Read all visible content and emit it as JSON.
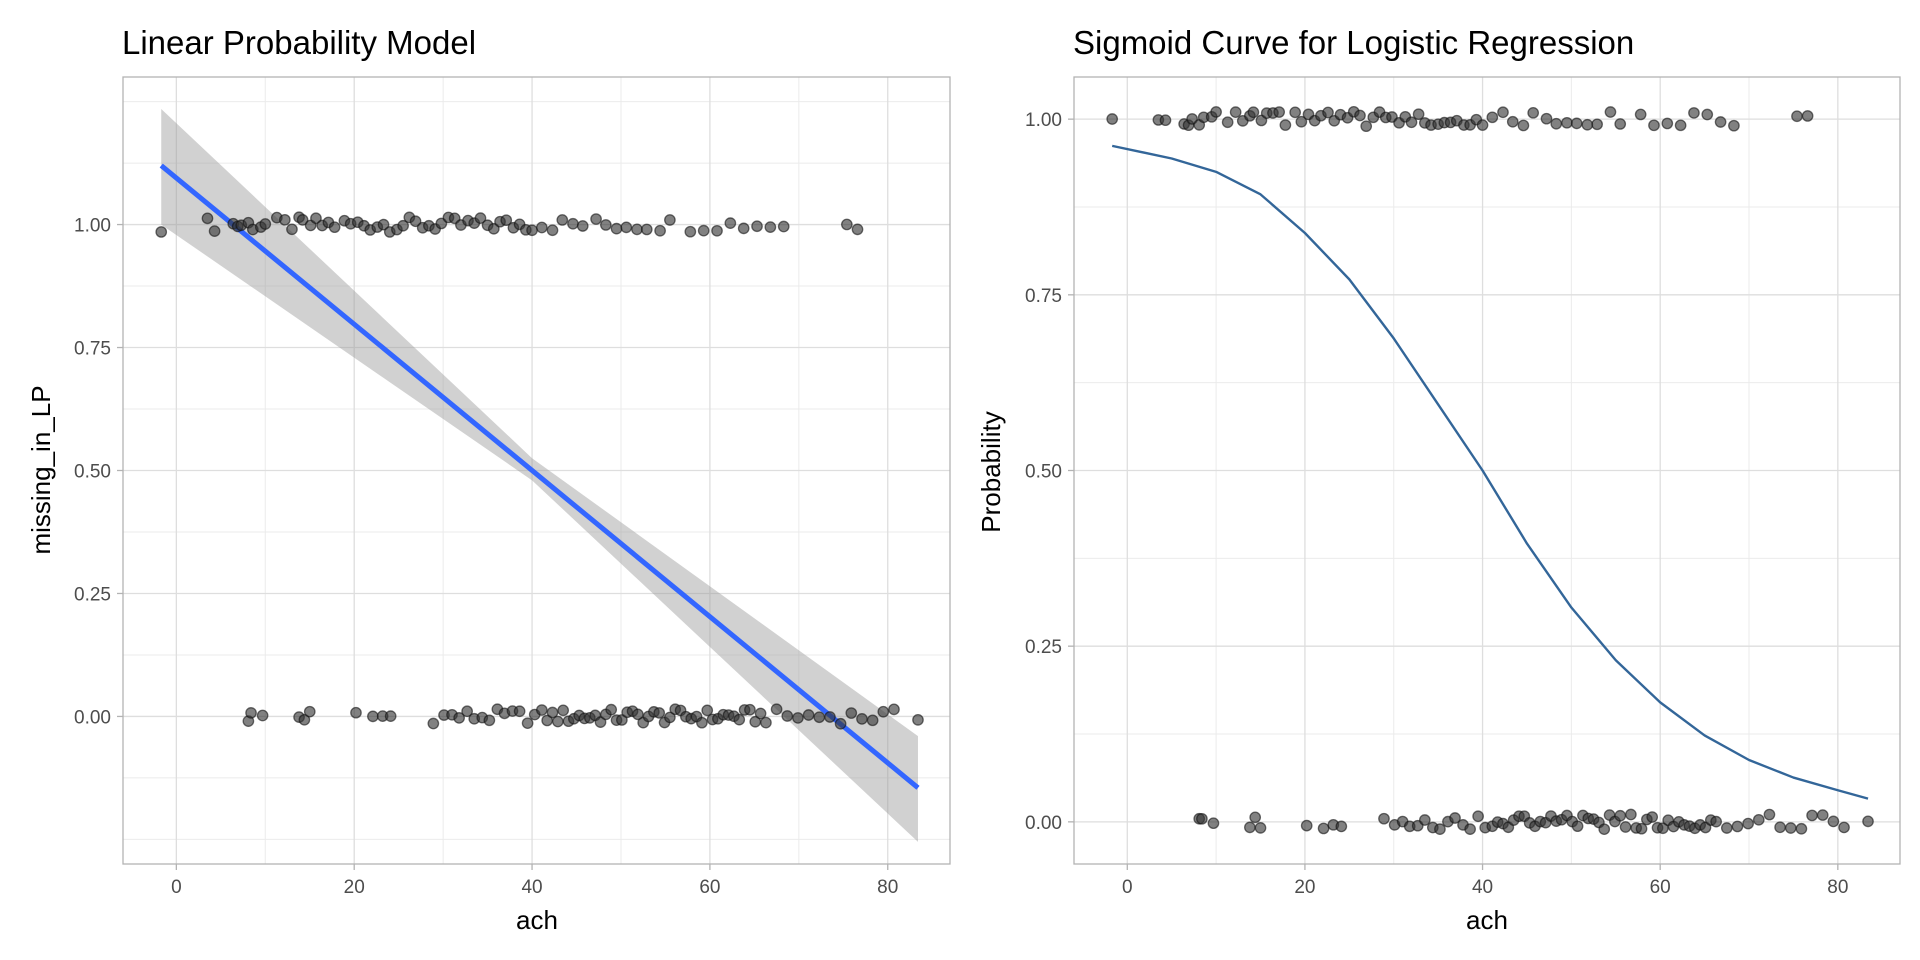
{
  "chart_data": [
    {
      "type": "scatter",
      "title": "Linear Probability Model",
      "xlabel": "ach",
      "ylabel": "missing_in_LP",
      "xlim": [
        -6,
        87
      ],
      "ylim": [
        -0.3,
        1.3
      ],
      "xticks": [
        0,
        20,
        40,
        60,
        80
      ],
      "xtick_labels": [
        "0",
        "20",
        "40",
        "60",
        "80"
      ],
      "yticks": [
        0,
        0.25,
        0.5,
        0.75,
        1
      ],
      "ytick_labels": [
        "0.00",
        "0.25",
        "0.50",
        "0.75",
        "1.00"
      ],
      "grid": true,
      "legend": "none",
      "series": [
        {
          "kind": "points",
          "color": "#333333",
          "y_level": 1,
          "x": [
            -1.7,
            3.5,
            4.3,
            6.4,
            6.9,
            7.3,
            8.1,
            8.6,
            9.5,
            10.0,
            11.3,
            12.2,
            13.0,
            13.8,
            14.2,
            15.1,
            15.7,
            16.4,
            17.1,
            17.8,
            18.9,
            19.6,
            20.4,
            21.1,
            21.8,
            22.6,
            23.3,
            24.0,
            24.8,
            25.5,
            26.2,
            26.9,
            27.7,
            28.4,
            29.1,
            29.8,
            30.6,
            31.3,
            32.0,
            32.8,
            33.5,
            34.2,
            35.0,
            35.7,
            36.4,
            37.1,
            37.9,
            38.6,
            39.3,
            40.0,
            41.1,
            42.3,
            43.4,
            44.6,
            45.7,
            47.2,
            48.3,
            49.5,
            50.6,
            51.8,
            52.9,
            54.4,
            55.5,
            57.8,
            59.3,
            60.8,
            62.3,
            63.8,
            65.3,
            66.8,
            68.3,
            75.4,
            76.6
          ]
        },
        {
          "kind": "points",
          "color": "#333333",
          "y_level": 0,
          "x": [
            8.1,
            8.4,
            9.7,
            13.8,
            14.4,
            15.0,
            20.2,
            22.1,
            23.2,
            24.1,
            28.9,
            30.1,
            31.0,
            31.8,
            32.7,
            33.5,
            34.4,
            35.2,
            36.1,
            36.9,
            37.8,
            38.6,
            39.5,
            40.3,
            41.1,
            41.7,
            42.3,
            42.9,
            43.5,
            44.1,
            44.7,
            45.3,
            45.9,
            46.5,
            47.1,
            47.7,
            48.3,
            48.9,
            49.5,
            50.1,
            50.7,
            51.3,
            51.9,
            52.5,
            53.1,
            53.7,
            54.3,
            54.9,
            55.5,
            56.1,
            56.7,
            57.3,
            57.9,
            58.5,
            59.1,
            59.7,
            60.3,
            60.9,
            61.5,
            62.1,
            62.7,
            63.3,
            63.9,
            64.5,
            65.1,
            65.7,
            66.3,
            67.5,
            68.7,
            69.9,
            71.1,
            72.3,
            73.5,
            74.7,
            75.9,
            77.1,
            78.3,
            79.5,
            80.7,
            83.4
          ]
        },
        {
          "kind": "fit-line",
          "color": "#3366FF",
          "x": [
            -1.7,
            83.4
          ],
          "y": [
            1.12,
            -0.145
          ]
        },
        {
          "kind": "ribbon",
          "color": "#999999",
          "x": [
            -1.7,
            40,
            83.4
          ],
          "y_low": [
            1.0,
            0.48,
            -0.255
          ],
          "y_high": [
            1.235,
            0.525,
            -0.04
          ]
        }
      ]
    },
    {
      "type": "scatter",
      "title": "Sigmoid Curve for Logistic Regression",
      "xlabel": "ach",
      "ylabel": "Probability",
      "xlim": [
        -6,
        87
      ],
      "ylim": [
        -0.06,
        1.06
      ],
      "xticks": [
        0,
        20,
        40,
        60,
        80
      ],
      "xtick_labels": [
        "0",
        "20",
        "40",
        "60",
        "80"
      ],
      "yticks": [
        0,
        0.25,
        0.5,
        0.75,
        1
      ],
      "ytick_labels": [
        "0.00",
        "0.25",
        "0.50",
        "0.75",
        "1.00"
      ],
      "grid": true,
      "legend": "none",
      "series": [
        {
          "kind": "points",
          "color": "#333333",
          "y_level": 1,
          "x": [
            -1.7,
            3.5,
            4.3,
            6.4,
            6.9,
            7.3,
            8.1,
            8.6,
            9.5,
            10.0,
            11.3,
            12.2,
            13.0,
            13.8,
            14.2,
            15.1,
            15.7,
            16.4,
            17.1,
            17.8,
            18.9,
            19.6,
            20.4,
            21.1,
            21.8,
            22.6,
            23.3,
            24.0,
            24.8,
            25.5,
            26.2,
            26.9,
            27.7,
            28.4,
            29.1,
            29.8,
            30.6,
            31.3,
            32.0,
            32.8,
            33.5,
            34.2,
            35.0,
            35.7,
            36.4,
            37.1,
            37.9,
            38.6,
            39.3,
            40.0,
            41.1,
            42.3,
            43.4,
            44.6,
            45.7,
            47.2,
            48.3,
            49.5,
            50.6,
            51.8,
            52.9,
            54.4,
            55.5,
            57.8,
            59.3,
            60.8,
            62.3,
            63.8,
            65.3,
            66.8,
            68.3,
            75.4,
            76.6
          ]
        },
        {
          "kind": "points",
          "color": "#333333",
          "y_level": 0,
          "x": [
            8.1,
            8.4,
            9.7,
            13.8,
            14.4,
            15.0,
            20.2,
            22.1,
            23.2,
            24.1,
            28.9,
            30.1,
            31.0,
            31.8,
            32.7,
            33.5,
            34.4,
            35.2,
            36.1,
            36.9,
            37.8,
            38.6,
            39.5,
            40.3,
            41.1,
            41.7,
            42.3,
            42.9,
            43.5,
            44.1,
            44.7,
            45.3,
            45.9,
            46.5,
            47.1,
            47.7,
            48.3,
            48.9,
            49.5,
            50.1,
            50.7,
            51.3,
            51.9,
            52.5,
            53.1,
            53.7,
            54.3,
            54.9,
            55.5,
            56.1,
            56.7,
            57.3,
            57.9,
            58.5,
            59.1,
            59.7,
            60.3,
            60.9,
            61.5,
            62.1,
            62.7,
            63.3,
            63.9,
            64.5,
            65.1,
            65.7,
            66.3,
            67.5,
            68.7,
            69.9,
            71.1,
            72.3,
            73.5,
            74.7,
            75.9,
            77.1,
            78.3,
            79.5,
            80.7,
            83.4
          ]
        },
        {
          "kind": "curve",
          "color": "#336699",
          "x": [
            -1.7,
            5,
            10,
            15,
            20,
            25,
            30,
            35,
            40,
            45,
            50,
            55,
            60,
            65,
            70,
            75,
            80,
            83.4
          ],
          "y": [
            0.962,
            0.944,
            0.925,
            0.893,
            0.838,
            0.772,
            0.688,
            0.594,
            0.5,
            0.396,
            0.305,
            0.23,
            0.17,
            0.123,
            0.088,
            0.063,
            0.045,
            0.033
          ]
        }
      ]
    }
  ]
}
